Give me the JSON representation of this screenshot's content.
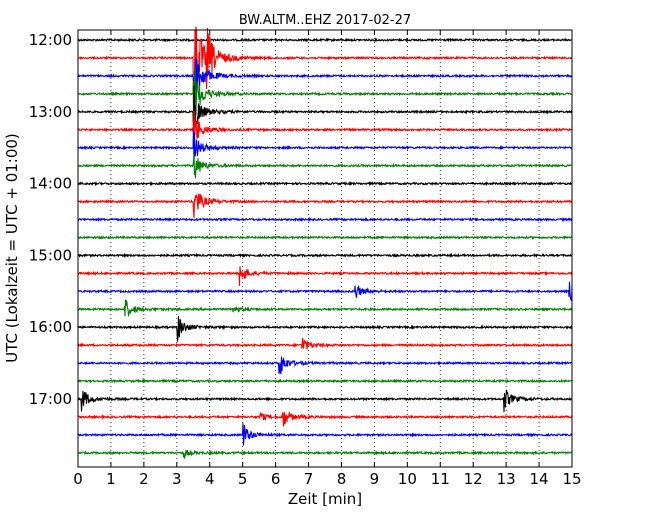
{
  "chart_data": {
    "type": "line",
    "title": "BW.ALTM..EHZ 2017-02-27",
    "xlabel": "Zeit  [min]",
    "ylabel": "UTC (Lokalzeit = UTC + 01:00)",
    "xlim": [
      0,
      15
    ],
    "x_ticks": [
      "0",
      "1",
      "2",
      "3",
      "4",
      "5",
      "6",
      "7",
      "8",
      "9",
      "10",
      "11",
      "12",
      "13",
      "14",
      "15"
    ],
    "y_ticks": [
      "12:00",
      "13:00",
      "14:00",
      "15:00",
      "16:00",
      "17:00"
    ],
    "grid": true,
    "trace_interval_minutes": 15,
    "trace_colors": [
      "#000000",
      "#ff0000",
      "#0000ff",
      "#008000"
    ],
    "series": [
      {
        "start": "12:00",
        "events": []
      },
      {
        "start": "12:15",
        "events": [
          {
            "minute": 3.5,
            "amplitude": 1.6
          },
          {
            "minute": 3.9,
            "amplitude": 0.6
          }
        ]
      },
      {
        "start": "12:30",
        "events": [
          {
            "minute": 3.5,
            "amplitude": 1.0
          }
        ]
      },
      {
        "start": "12:45",
        "events": [
          {
            "minute": 3.5,
            "amplitude": 0.8
          }
        ]
      },
      {
        "start": "13:00",
        "events": [
          {
            "minute": 3.5,
            "amplitude": 0.6
          }
        ]
      },
      {
        "start": "13:15",
        "events": [
          {
            "minute": 3.5,
            "amplitude": 0.5
          }
        ]
      },
      {
        "start": "13:30",
        "events": [
          {
            "minute": 3.5,
            "amplitude": 0.4
          }
        ]
      },
      {
        "start": "13:45",
        "events": [
          {
            "minute": 3.5,
            "amplitude": 0.4
          }
        ]
      },
      {
        "start": "14:00",
        "events": []
      },
      {
        "start": "14:15",
        "events": [
          {
            "minute": 3.5,
            "amplitude": 0.5
          }
        ]
      },
      {
        "start": "14:30",
        "events": []
      },
      {
        "start": "14:45",
        "events": []
      },
      {
        "start": "15:00",
        "events": []
      },
      {
        "start": "15:15",
        "events": [
          {
            "minute": 4.9,
            "amplitude": 0.3
          }
        ]
      },
      {
        "start": "15:30",
        "events": [
          {
            "minute": 8.4,
            "amplitude": 0.2
          },
          {
            "minute": 14.9,
            "amplitude": 0.3
          }
        ]
      },
      {
        "start": "15:45",
        "events": [
          {
            "minute": 1.4,
            "amplitude": 0.3
          },
          {
            "minute": 4.7,
            "amplitude": 0.1
          }
        ]
      },
      {
        "start": "16:00",
        "events": [
          {
            "minute": 3.0,
            "amplitude": 0.35
          }
        ]
      },
      {
        "start": "16:15",
        "events": [
          {
            "minute": 6.8,
            "amplitude": 0.2
          }
        ]
      },
      {
        "start": "16:30",
        "events": [
          {
            "minute": 6.1,
            "amplitude": 0.35
          }
        ]
      },
      {
        "start": "16:45",
        "events": []
      },
      {
        "start": "17:00",
        "events": [
          {
            "minute": 0.1,
            "amplitude": 0.3
          },
          {
            "minute": 12.9,
            "amplitude": 0.35
          }
        ]
      },
      {
        "start": "17:15",
        "events": [
          {
            "minute": 6.2,
            "amplitude": 0.25
          },
          {
            "minute": 5.5,
            "amplitude": 0.12
          }
        ]
      },
      {
        "start": "17:30",
        "events": [
          {
            "minute": 5.0,
            "amplitude": 0.3
          }
        ]
      },
      {
        "start": "17:45",
        "events": [
          {
            "minute": 3.2,
            "amplitude": 0.1
          }
        ]
      }
    ]
  }
}
